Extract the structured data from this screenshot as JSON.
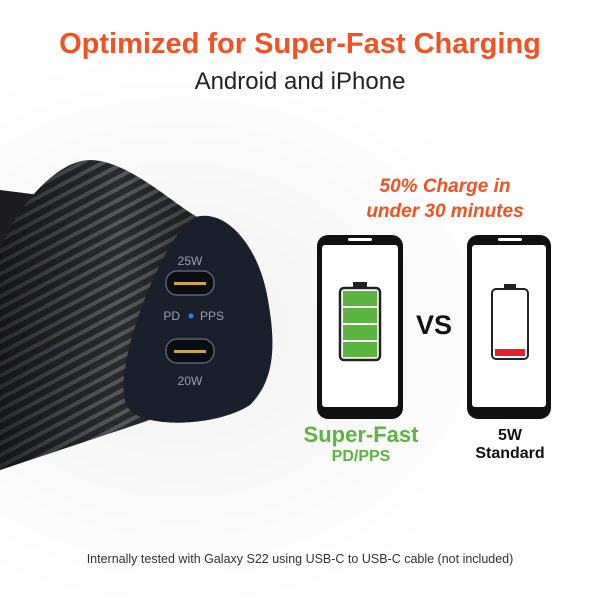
{
  "header": {
    "title": "Optimized for Super-Fast Charging",
    "subtitle": "Android and iPhone"
  },
  "product": {
    "port_top": "25W",
    "port_bottom": "20W",
    "mode_left": "PD",
    "mode_right": "PPS",
    "indicator_color": "#2a7bff"
  },
  "comparison": {
    "claim_line1": "50% Charge in",
    "claim_line2": "under 30 minutes",
    "vs_label": "VS",
    "left": {
      "label": "Super-Fast",
      "sublabel": "PD/PPS",
      "battery_fill_percent": 100,
      "color": "#5cb540"
    },
    "right": {
      "label": "5W",
      "sublabel": "Standard",
      "battery_fill_percent": 10,
      "color": "#e5202a"
    }
  },
  "footnote": "Internally tested with Galaxy S22 using USB-C to USB-C cable (not included)",
  "colors": {
    "accent": "#f05323",
    "green": "#5cb540",
    "red": "#e5202a"
  }
}
